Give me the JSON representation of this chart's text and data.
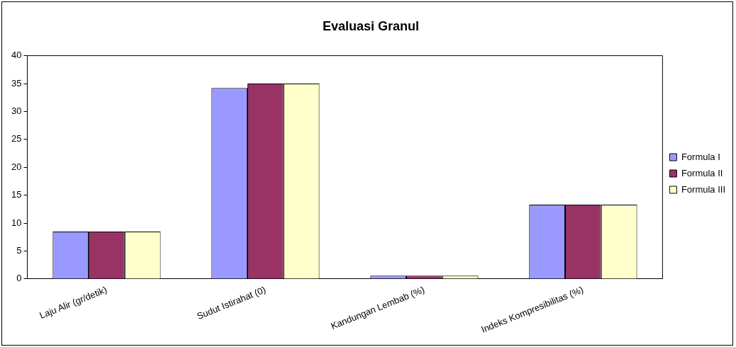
{
  "chart_data": {
    "type": "bar",
    "title": "Evaluasi Granul",
    "categories": [
      "Laju Alir (gr/detik)",
      "Sudut Istirahat (0)",
      "Kandungan Lembab (%)",
      "Indeks Kompresibilitas (%)"
    ],
    "series": [
      {
        "name": "Formula I",
        "color": "#9999ff",
        "values": [
          8.5,
          34.2,
          0.6,
          13.3
        ]
      },
      {
        "name": "Formula II",
        "color": "#993366",
        "values": [
          8.5,
          35,
          0.6,
          13.3
        ]
      },
      {
        "name": "Formula III",
        "color": "#ffffcc",
        "values": [
          8.5,
          35,
          0.6,
          13.3
        ]
      }
    ],
    "ylim": [
      0,
      40
    ],
    "yticks": [
      0,
      5,
      10,
      15,
      20,
      25,
      30,
      35,
      40
    ],
    "grid": false,
    "legend": "right"
  }
}
